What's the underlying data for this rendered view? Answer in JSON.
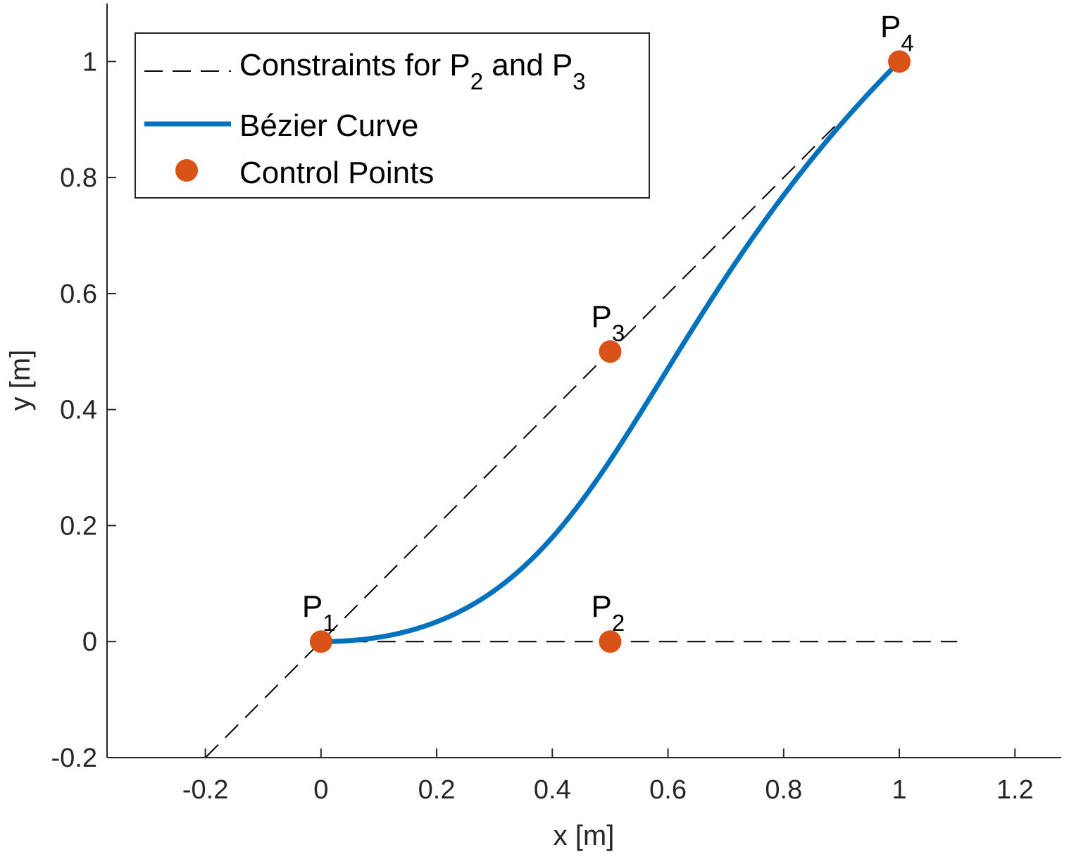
{
  "chart_data": {
    "type": "line",
    "xlabel": "x [m]",
    "ylabel": "y [m]",
    "xlim": [
      -0.37,
      1.28
    ],
    "ylim": [
      -0.2,
      1.1
    ],
    "xticks": [
      "-0.2",
      "0",
      "0.2",
      "0.4",
      "0.6",
      "0.8",
      "1",
      "1.2"
    ],
    "xtick_values": [
      -0.2,
      0,
      0.2,
      0.4,
      0.6,
      0.8,
      1,
      1.2
    ],
    "yticks": [
      "-0.2",
      "0",
      "0.2",
      "0.4",
      "0.6",
      "0.8",
      "1"
    ],
    "ytick_values": [
      -0.2,
      0,
      0.2,
      0.4,
      0.6,
      0.8,
      1
    ],
    "grid": false,
    "legend_position": "top-left",
    "series": [
      {
        "name": "Constraints for P2 and P3",
        "style": "dashed",
        "color": "#000000",
        "lines": [
          {
            "x": [
              -0.2,
              0.9
            ],
            "y": [
              -0.2,
              0.9
            ]
          },
          {
            "x": [
              0,
              1.1
            ],
            "y": [
              0,
              0
            ]
          }
        ]
      },
      {
        "name": "Bézier Curve",
        "style": "solid",
        "color": "#0072BD",
        "control_points": {
          "x": [
            0,
            0.5,
            0.5,
            1
          ],
          "y": [
            0,
            0,
            0.5,
            1
          ]
        }
      },
      {
        "name": "Control Points",
        "style": "marker",
        "color": "#D95319",
        "x": [
          0,
          0.5,
          0.5,
          1
        ],
        "y": [
          0,
          0,
          0.5,
          1
        ]
      }
    ],
    "point_labels": [
      {
        "base": "P",
        "sub": "1",
        "x": 0,
        "y": 0
      },
      {
        "base": "P",
        "sub": "2",
        "x": 0.5,
        "y": 0
      },
      {
        "base": "P",
        "sub": "3",
        "x": 0.5,
        "y": 0.5
      },
      {
        "base": "P",
        "sub": "4",
        "x": 1,
        "y": 1
      }
    ]
  },
  "legend": {
    "entry1_text_a": "Constraints for P",
    "entry1_sub_a": "2",
    "entry1_text_b": " and P",
    "entry1_sub_b": "3",
    "entry2_text": "Bézier Curve",
    "entry3_text": "Control Points"
  }
}
